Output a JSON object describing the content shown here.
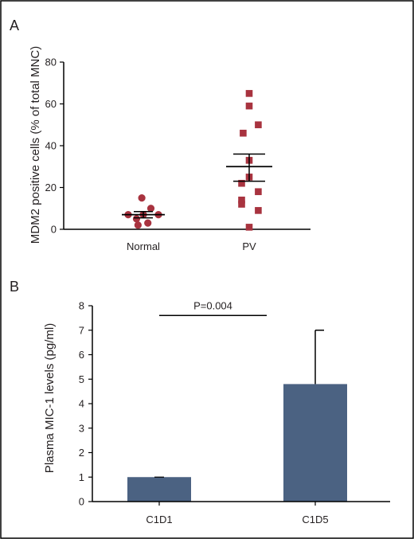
{
  "colors": {
    "marker": "#a8333f",
    "bar": "#4b6282",
    "axis": "#000000",
    "text": "#231f20",
    "border": "#000000"
  },
  "chart_data": [
    {
      "panel_label": "A",
      "type": "scatter",
      "ylabel": "MDM2 positive cells (% of total MNC)",
      "ylim": [
        0,
        80
      ],
      "yticks": [
        0,
        20,
        40,
        60,
        80
      ],
      "categories": [
        "Normal",
        "PV"
      ],
      "series": [
        {
          "category": "Normal",
          "marker": "circle",
          "points": [
            {
              "x": -0.2,
              "y": 7
            },
            {
              "x": -0.09,
              "y": 5
            },
            {
              "x": 0.0,
              "y": 7
            },
            {
              "x": 0.1,
              "y": 10
            },
            {
              "x": 0.2,
              "y": 7
            },
            {
              "x": -0.02,
              "y": 15
            },
            {
              "x": -0.07,
              "y": 2
            },
            {
              "x": 0.06,
              "y": 3
            }
          ],
          "mean": 7,
          "sem": [
            5.5,
            8.5
          ]
        },
        {
          "category": "PV",
          "marker": "square",
          "points": [
            {
              "x": 0.0,
              "y": 65
            },
            {
              "x": 0.0,
              "y": 59
            },
            {
              "x": 0.12,
              "y": 50
            },
            {
              "x": -0.08,
              "y": 46
            },
            {
              "x": 0.0,
              "y": 33
            },
            {
              "x": 0.0,
              "y": 25
            },
            {
              "x": -0.1,
              "y": 22
            },
            {
              "x": 0.12,
              "y": 18
            },
            {
              "x": -0.1,
              "y": 14
            },
            {
              "x": -0.1,
              "y": 12
            },
            {
              "x": 0.12,
              "y": 9
            },
            {
              "x": 0.0,
              "y": 1
            }
          ],
          "mean": 30,
          "sem": [
            23,
            36
          ]
        }
      ]
    },
    {
      "panel_label": "B",
      "type": "bar",
      "ylabel": "Plasma MIC-1 levels (pg/ml)",
      "ylim": [
        0,
        8
      ],
      "yticks": [
        0,
        1,
        2,
        3,
        4,
        5,
        6,
        7,
        8
      ],
      "categories": [
        "C1D1",
        "C1D5"
      ],
      "values": [
        1,
        4.8
      ],
      "error_upper": [
        1,
        7
      ],
      "annotation": "P=0.004"
    }
  ]
}
